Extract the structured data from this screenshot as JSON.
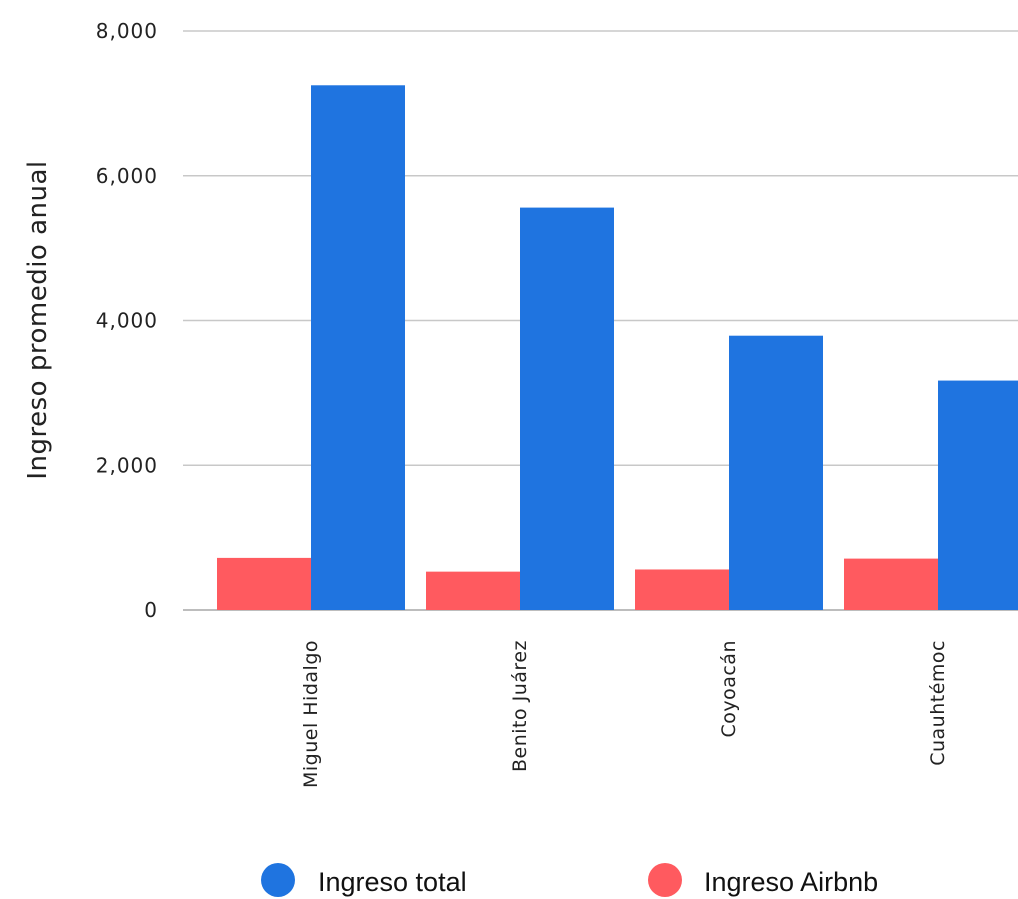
{
  "chart_data": {
    "type": "bar",
    "ylabel": "Ingreso promedio anual",
    "xlabel": "",
    "ylim": [
      0,
      8000
    ],
    "yticks": [
      0,
      2000,
      4000,
      6000,
      8000
    ],
    "ytick_labels": [
      "0",
      "2,000",
      "4,000",
      "6,000",
      "8,000"
    ],
    "categories": [
      "Miguel Hidalgo",
      "Benito Juárez",
      "Coyoacán",
      "Cuauhtémoc"
    ],
    "series": [
      {
        "name": "Ingreso Airbnb",
        "color": "#ff5a5f",
        "values": [
          720,
          530,
          560,
          710
        ]
      },
      {
        "name": "Ingreso total",
        "color": "#1f74e0",
        "values": [
          7250,
          5560,
          3790,
          3170
        ]
      }
    ],
    "grid": true,
    "legend": {
      "position": "bottom",
      "entries": [
        {
          "label": "Ingreso total",
          "color": "#1f74e0"
        },
        {
          "label": "Ingreso Airbnb",
          "color": "#ff5a5f"
        }
      ]
    }
  }
}
